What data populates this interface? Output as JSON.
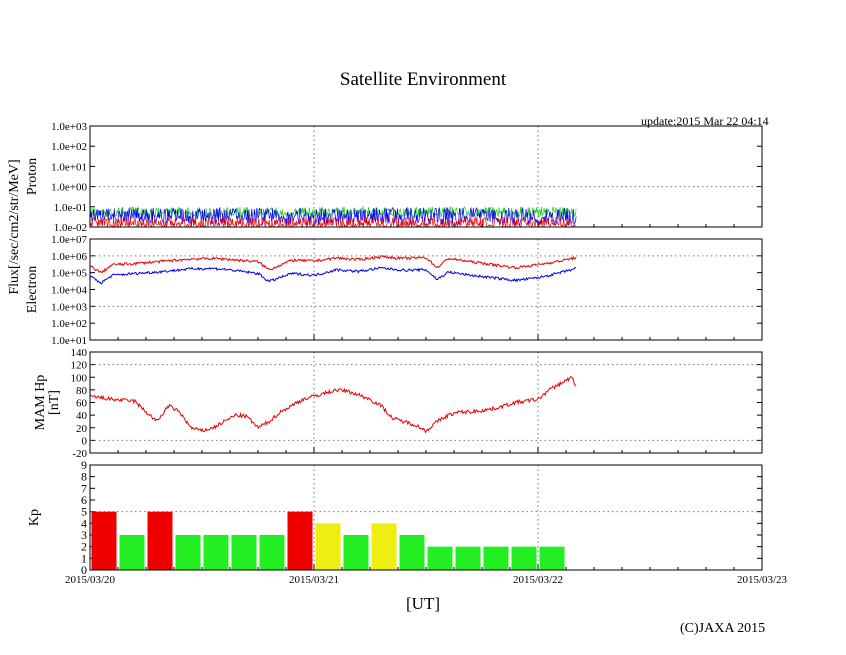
{
  "title": "Satellite Environment",
  "update": "update:2015 Mar 22 04:14",
  "x_unit_label": "[UT]",
  "copyright": "(C)JAXA 2015",
  "colors": {
    "red": "#ee0000",
    "blue": "#0000ee",
    "green": "#22cc22",
    "green_bar": "#22ee22",
    "yellow": "#eeee11",
    "grid": "#777777"
  },
  "chart_data": [
    {
      "id": "proton",
      "type": "line",
      "ylabel": "Proton",
      "shared_label": "Flux[/sec/cm2/str/MeV]",
      "yscale": "log",
      "ylim": [
        0.01,
        1000
      ],
      "ytick_labels": [
        "1.0e-02",
        "1.0e-01",
        "1.0e+00",
        "1.0e+01",
        "1.0e+02",
        "1.0e+03"
      ],
      "xlim": [
        0,
        3
      ],
      "xtick_labels": [
        "2015/03/20",
        "2015/03/21",
        "2015/03/22",
        "2015/03/23"
      ],
      "x_end_days": 2.17,
      "series": [
        {
          "name": "green channel",
          "color": "green",
          "base": 0.05,
          "low": 0.03,
          "high": 0.1
        },
        {
          "name": "blue channel",
          "color": "blue",
          "base": 0.03,
          "low": 0.012,
          "high": 0.09
        },
        {
          "name": "red channel",
          "color": "red",
          "base": 0.013,
          "low": 0.01,
          "high": 0.03
        }
      ]
    },
    {
      "id": "electron",
      "type": "line",
      "ylabel": "Electron",
      "yscale": "log",
      "ylim": [
        10,
        10000000
      ],
      "ytick_labels": [
        "1.0e+01",
        "1.0e+02",
        "1.0e+03",
        "1.0e+04",
        "1.0e+05",
        "1.0e+06",
        "1.0e+07"
      ],
      "xlim": [
        0,
        3
      ],
      "series": [
        {
          "name": "red channel",
          "color": "red",
          "x": [
            0.0,
            0.05,
            0.1,
            0.2,
            0.3,
            0.45,
            0.55,
            0.6,
            0.75,
            0.8,
            0.9,
            1.0,
            1.1,
            1.2,
            1.3,
            1.4,
            1.5,
            1.55,
            1.6,
            1.7,
            1.8,
            1.9,
            2.0,
            2.1,
            2.17
          ],
          "values": [
            250000,
            100000,
            300000,
            350000,
            450000,
            650000,
            700000,
            650000,
            450000,
            150000,
            550000,
            500000,
            750000,
            600000,
            900000,
            700000,
            800000,
            200000,
            700000,
            450000,
            300000,
            200000,
            300000,
            500000,
            800000
          ]
        },
        {
          "name": "blue channel",
          "color": "blue",
          "x": [
            0.0,
            0.05,
            0.1,
            0.2,
            0.3,
            0.45,
            0.55,
            0.6,
            0.75,
            0.8,
            0.9,
            1.0,
            1.1,
            1.2,
            1.3,
            1.4,
            1.5,
            1.55,
            1.6,
            1.7,
            1.8,
            1.9,
            2.0,
            2.1,
            2.17
          ],
          "values": [
            60000,
            25000,
            70000,
            90000,
            110000,
            170000,
            180000,
            160000,
            90000,
            30000,
            90000,
            70000,
            150000,
            120000,
            190000,
            140000,
            150000,
            40000,
            110000,
            70000,
            50000,
            35000,
            50000,
            100000,
            180000
          ]
        }
      ]
    },
    {
      "id": "mam",
      "type": "line",
      "ylabel": "MAM Hp [nT]",
      "ylabel_lines": [
        "MAM Hp",
        "[nT]"
      ],
      "ylim": [
        -20,
        140
      ],
      "ytick_labels": [
        "-20",
        "0",
        "20",
        "40",
        "60",
        "80",
        "100",
        "120",
        "140"
      ],
      "xlim": [
        0,
        3
      ],
      "series": [
        {
          "name": "Hp",
          "color": "red",
          "x": [
            0.0,
            0.1,
            0.2,
            0.25,
            0.3,
            0.35,
            0.4,
            0.45,
            0.5,
            0.55,
            0.6,
            0.65,
            0.7,
            0.75,
            0.8,
            0.85,
            0.9,
            0.95,
            1.0,
            1.05,
            1.1,
            1.15,
            1.2,
            1.25,
            1.3,
            1.35,
            1.4,
            1.45,
            1.5,
            1.55,
            1.6,
            1.65,
            1.7,
            1.8,
            1.9,
            2.0,
            2.05,
            2.1,
            2.15,
            2.17
          ],
          "values": [
            70,
            65,
            62,
            45,
            30,
            55,
            45,
            20,
            15,
            20,
            30,
            40,
            38,
            20,
            30,
            45,
            55,
            65,
            70,
            75,
            80,
            78,
            72,
            65,
            55,
            35,
            30,
            25,
            15,
            30,
            40,
            45,
            45,
            50,
            60,
            65,
            80,
            90,
            100,
            85
          ]
        }
      ]
    },
    {
      "id": "kp",
      "type": "bar",
      "ylabel": "Kp",
      "ylim": [
        0,
        9
      ],
      "ytick_labels": [
        "0",
        "1",
        "2",
        "3",
        "4",
        "5",
        "6",
        "7",
        "8",
        "9"
      ],
      "xlim": [
        0,
        3
      ],
      "bar_width_hours": 3,
      "values": [
        5,
        3,
        5,
        3,
        3,
        3,
        3,
        5,
        4,
        3,
        4,
        3,
        2,
        2,
        2,
        2,
        2
      ],
      "thresholds": {
        "red_min": 5,
        "yellow_min": 4
      }
    }
  ]
}
